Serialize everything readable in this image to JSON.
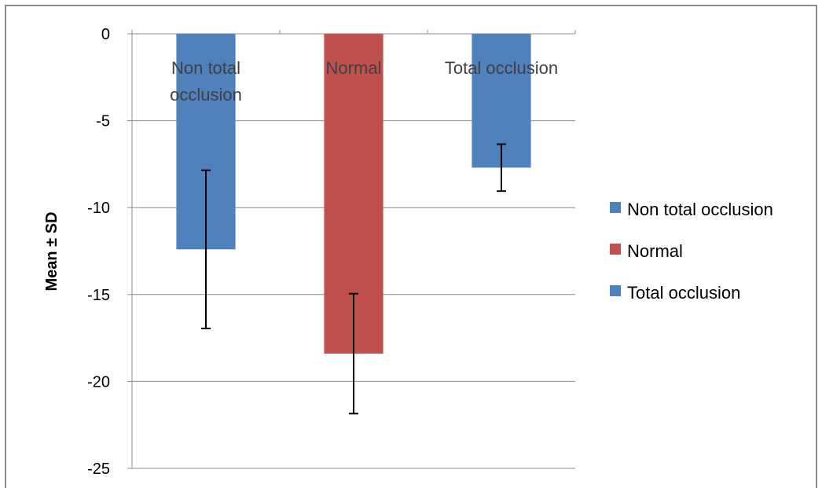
{
  "chart_data": {
    "type": "bar",
    "title": "",
    "xlabel": "",
    "ylabel": "Mean ± SD",
    "ylim": [
      -25,
      0
    ],
    "yticks": [
      0,
      -5,
      -10,
      -15,
      -20,
      -25
    ],
    "ytick_labels": [
      "0",
      "-5",
      "-10",
      "-15",
      "-20",
      "-25"
    ],
    "grid": true,
    "legend_position": "right",
    "categories": [
      "Non total occlusion",
      "Normal",
      "Total occlusion"
    ],
    "category_label_lines": [
      [
        "Non total",
        "occlusion"
      ],
      [
        "Normal"
      ],
      [
        "Total occlusion"
      ]
    ],
    "values": [
      -12.4,
      -18.4,
      -7.7
    ],
    "error_sd": [
      4.55,
      3.45,
      1.35
    ],
    "colors": [
      "#4f81bd",
      "#c0504d",
      "#4f81bd"
    ],
    "legend": [
      {
        "label": "Non total occlusion",
        "color": "#4f81bd"
      },
      {
        "label": "Normal",
        "color": "#c0504d"
      },
      {
        "label": "Total occlusion",
        "color": "#4f81bd"
      }
    ]
  }
}
